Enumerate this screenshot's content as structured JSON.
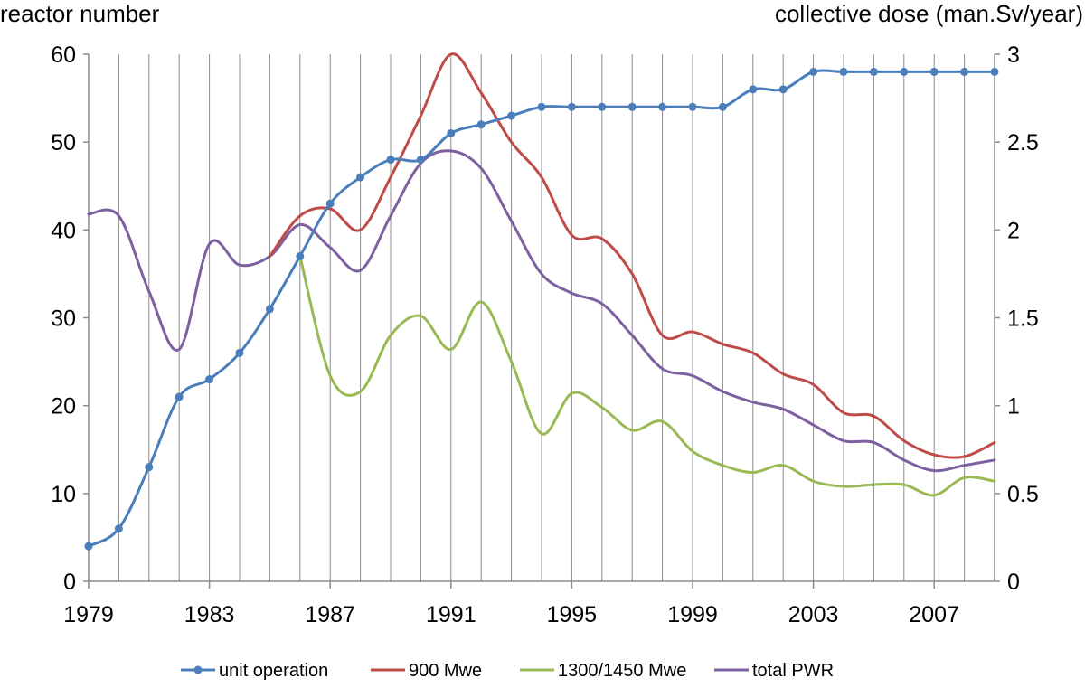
{
  "chart_data": {
    "type": "line",
    "y_axis_title": "reactor number",
    "y2_axis_title": "collective dose (man.Sv/year)",
    "ylim": [
      0,
      60
    ],
    "y2lim": [
      0,
      3
    ],
    "y_ticks": [
      "0",
      "10",
      "20",
      "30",
      "40",
      "50",
      "60"
    ],
    "y2_ticks": [
      "0",
      "0.5",
      "1",
      "1.5",
      "2",
      "2.5",
      "3"
    ],
    "x": [
      1979,
      1980,
      1981,
      1982,
      1983,
      1984,
      1985,
      1986,
      1987,
      1988,
      1989,
      1990,
      1991,
      1992,
      1993,
      1994,
      1995,
      1996,
      1997,
      1998,
      1999,
      2000,
      2001,
      2002,
      2003,
      2004,
      2005,
      2006,
      2007,
      2008,
      2009
    ],
    "x_ticks": [
      "1979",
      "1983",
      "1987",
      "1991",
      "1995",
      "1999",
      "2003",
      "2007"
    ],
    "grid": "vertical",
    "legend_position": "bottom",
    "series": [
      {
        "name": "unit operation",
        "axis": "left",
        "color": "#4a7ebb",
        "markers": true,
        "x": [
          1979,
          1980,
          1981,
          1982,
          1983,
          1984,
          1985,
          1986,
          1987,
          1988,
          1989,
          1990,
          1991,
          1992,
          1993,
          1994,
          1995,
          1996,
          1997,
          1998,
          1999,
          2000,
          2001,
          2002,
          2003,
          2004,
          2005,
          2006,
          2007,
          2008,
          2009
        ],
        "values": [
          4,
          6,
          13,
          21,
          23,
          26,
          31,
          37,
          43,
          46,
          48,
          48,
          51,
          52,
          53,
          54,
          54,
          54,
          54,
          54,
          54,
          54,
          56,
          56,
          58,
          58,
          58,
          58,
          58,
          58,
          58
        ]
      },
      {
        "name": "900 Mwe",
        "axis": "right",
        "color": "#be4b48",
        "markers": false,
        "x": [
          1985,
          1986,
          1987,
          1988,
          1989,
          1990,
          1991,
          1992,
          1993,
          1994,
          1995,
          1996,
          1997,
          1998,
          1999,
          2000,
          2001,
          2002,
          2003,
          2004,
          2005,
          2006,
          2007,
          2008,
          2009
        ],
        "values": [
          1.85,
          2.08,
          2.12,
          2.0,
          2.3,
          2.65,
          3.0,
          2.78,
          2.5,
          2.3,
          1.97,
          1.95,
          1.75,
          1.4,
          1.42,
          1.35,
          1.3,
          1.18,
          1.12,
          0.96,
          0.94,
          0.8,
          0.72,
          0.71,
          0.79
        ]
      },
      {
        "name": "1300/1450 Mwe",
        "axis": "right",
        "color": "#98b954",
        "markers": false,
        "x": [
          1986,
          1987,
          1988,
          1989,
          1990,
          1991,
          1992,
          1993,
          1994,
          1995,
          1996,
          1997,
          1998,
          1999,
          2000,
          2001,
          2002,
          2003,
          2004,
          2005,
          2006,
          2007,
          2008,
          2009
        ],
        "values": [
          1.85,
          1.17,
          1.08,
          1.4,
          1.51,
          1.32,
          1.59,
          1.25,
          0.84,
          1.07,
          0.99,
          0.86,
          0.91,
          0.74,
          0.66,
          0.62,
          0.66,
          0.57,
          0.54,
          0.55,
          0.55,
          0.49,
          0.59,
          0.57
        ]
      },
      {
        "name": "total PWR",
        "axis": "right",
        "color": "#7d60a0",
        "markers": false,
        "x": [
          1979,
          1980,
          1981,
          1982,
          1983,
          1984,
          1985,
          1986,
          1987,
          1988,
          1989,
          1990,
          1991,
          1992,
          1993,
          1994,
          1995,
          1996,
          1997,
          1998,
          1999,
          2000,
          2001,
          2002,
          2003,
          2004,
          2005,
          2006,
          2007,
          2008,
          2009
        ],
        "values": [
          2.09,
          2.08,
          1.65,
          1.32,
          1.92,
          1.8,
          1.85,
          2.03,
          1.9,
          1.77,
          2.08,
          2.38,
          2.45,
          2.35,
          2.05,
          1.75,
          1.64,
          1.58,
          1.4,
          1.21,
          1.17,
          1.08,
          1.02,
          0.98,
          0.89,
          0.8,
          0.79,
          0.69,
          0.63,
          0.66,
          0.69
        ]
      }
    ]
  }
}
